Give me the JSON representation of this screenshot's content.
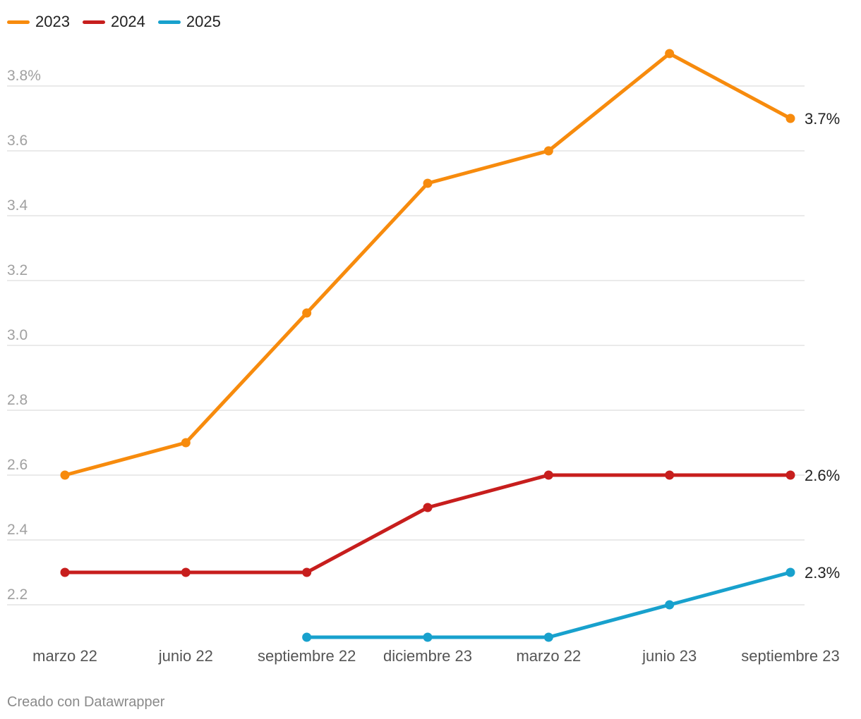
{
  "chart_data": {
    "type": "line",
    "title": "",
    "xlabel": "",
    "ylabel": "",
    "categories": [
      "marzo 22",
      "junio 22",
      "septiembre 22",
      "diciembre 23",
      "marzo 22",
      "junio 23",
      "septiembre 23"
    ],
    "y_ticks": [
      "2.2",
      "2.4",
      "2.6",
      "2.8",
      "3.0",
      "3.2",
      "3.4",
      "3.6",
      "3.8%"
    ],
    "ylim": [
      2.1,
      3.95
    ],
    "grid": true,
    "legend_position": "top-left",
    "series": [
      {
        "name": "2023",
        "color": "#f78b0d",
        "values": [
          2.6,
          2.7,
          3.1,
          3.5,
          3.6,
          3.9,
          3.7
        ],
        "end_label": "3.7%"
      },
      {
        "name": "2024",
        "color": "#c71e1d",
        "values": [
          2.3,
          2.3,
          2.3,
          2.5,
          2.6,
          2.6,
          2.6
        ],
        "end_label": "2.6%"
      },
      {
        "name": "2025",
        "color": "#18a1cd",
        "values": [
          null,
          null,
          2.1,
          2.1,
          2.1,
          2.2,
          2.3
        ],
        "end_label": "2.3%"
      }
    ]
  },
  "footer": {
    "credit": "Creado con Datawrapper"
  }
}
